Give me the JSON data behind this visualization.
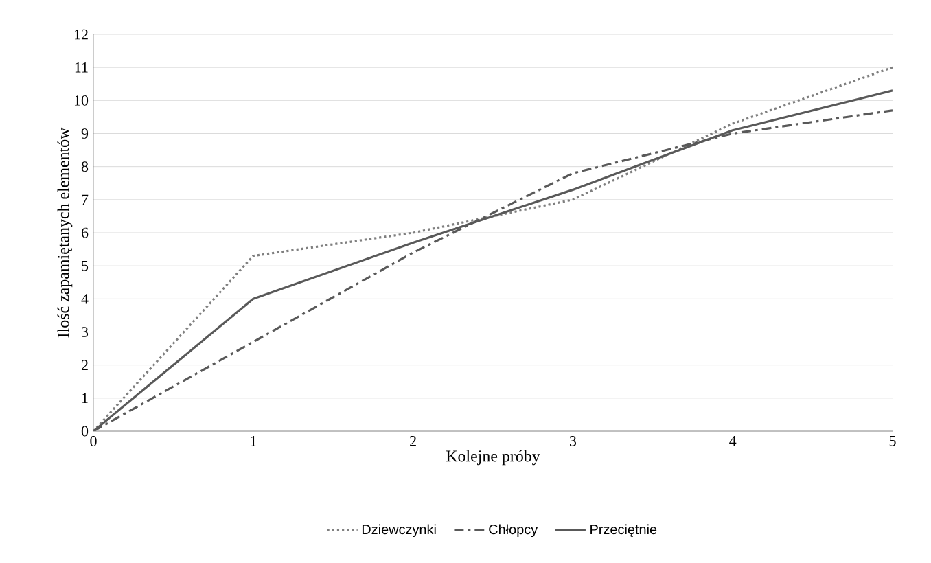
{
  "chart_data": {
    "type": "line",
    "xlabel": "Kolejne próby",
    "ylabel": "Ilość zapamiętanych elementów",
    "x": [
      0,
      1,
      2,
      3,
      4,
      5
    ],
    "series": [
      {
        "name": "Dziewczynki",
        "color": "#7f7f7f",
        "line_style": "dotted",
        "values": [
          0,
          5.3,
          6.0,
          7.0,
          9.3,
          11.0
        ]
      },
      {
        "name": "Chłopcy",
        "color": "#595959",
        "line_style": "dashdot",
        "values": [
          0,
          2.7,
          5.4,
          7.8,
          9.0,
          9.7
        ]
      },
      {
        "name": "Przeciętnie",
        "color": "#595959",
        "line_style": "solid",
        "values": [
          0,
          4.0,
          5.7,
          7.3,
          9.1,
          10.3
        ]
      }
    ],
    "xlim": [
      0,
      5
    ],
    "ylim": [
      0,
      12
    ],
    "xticks": [
      0,
      1,
      2,
      3,
      4,
      5
    ],
    "yticks": [
      0,
      1,
      2,
      3,
      4,
      5,
      6,
      7,
      8,
      9,
      10,
      11,
      12
    ],
    "grid": "y",
    "legend": "bottom",
    "marker": "none"
  }
}
